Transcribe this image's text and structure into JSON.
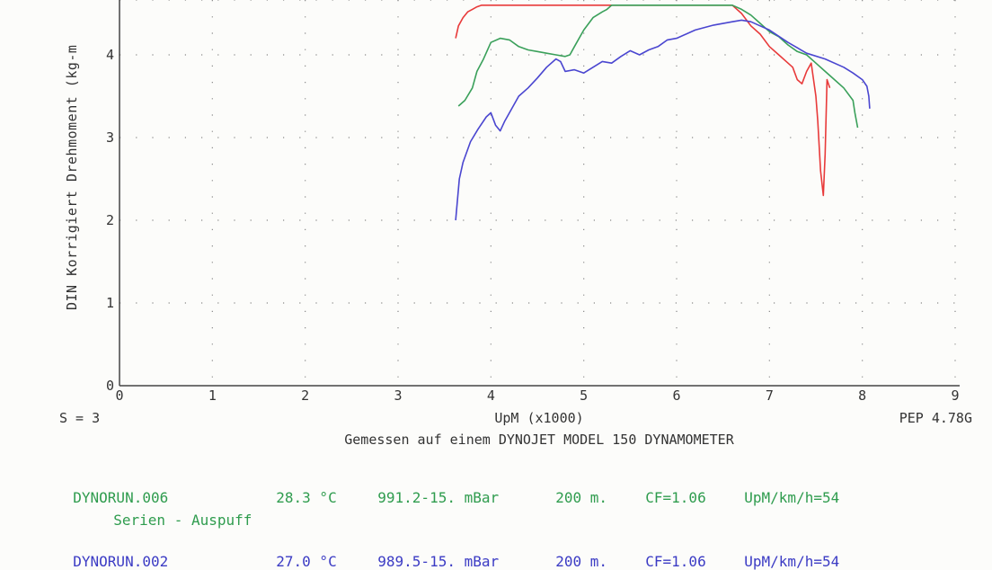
{
  "chart_data": {
    "type": "line",
    "ylabel": "DIN Korrigiert Drehmoment (kg-m",
    "xlabel": "UpM (x1000)",
    "xlim": [
      0,
      9
    ],
    "ylim": [
      0,
      4.55
    ],
    "x_ticks": [
      "0",
      "1",
      "2",
      "3",
      "4",
      "5",
      "6",
      "7",
      "8",
      "9"
    ],
    "y_ticks": [
      "0",
      "1",
      "2",
      "3",
      "4"
    ],
    "grid": true,
    "footer_left": "S = 3",
    "footer_right": "PEP 4.78G",
    "footer_center": "Gemessen auf einem DYNOJET MODEL 150 DYNAMOMETER",
    "series": [
      {
        "color": "#e83a3a",
        "x": [
          3.62,
          3.65,
          3.7,
          3.75,
          3.8,
          3.85,
          3.9,
          6.6,
          6.7,
          6.8,
          6.9,
          7.0,
          7.1,
          7.2,
          7.25,
          7.3,
          7.35,
          7.4,
          7.45,
          7.5,
          7.52,
          7.55,
          7.58,
          7.6,
          7.62,
          7.65
        ],
        "y": [
          4.2,
          4.35,
          4.45,
          4.52,
          4.55,
          4.58,
          4.6,
          4.6,
          4.5,
          4.35,
          4.25,
          4.1,
          4.0,
          3.9,
          3.85,
          3.7,
          3.65,
          3.8,
          3.9,
          3.5,
          3.2,
          2.6,
          2.3,
          2.8,
          3.7,
          3.6
        ]
      },
      {
        "color": "#3aa05a",
        "x": [
          3.65,
          3.72,
          3.8,
          3.85,
          3.92,
          4.0,
          4.1,
          4.2,
          4.3,
          4.4,
          4.5,
          4.6,
          4.7,
          4.8,
          4.85,
          4.9,
          5.0,
          5.1,
          5.2,
          5.25,
          5.3,
          6.6,
          6.7,
          6.8,
          6.9,
          7.0,
          7.1,
          7.2,
          7.3,
          7.4,
          7.5,
          7.6,
          7.7,
          7.8,
          7.9,
          7.92,
          7.95
        ],
        "y": [
          3.38,
          3.45,
          3.6,
          3.8,
          3.95,
          4.15,
          4.2,
          4.18,
          4.1,
          4.06,
          4.04,
          4.02,
          4.0,
          3.98,
          4.0,
          4.1,
          4.3,
          4.45,
          4.52,
          4.55,
          4.6,
          4.6,
          4.55,
          4.48,
          4.38,
          4.28,
          4.22,
          4.12,
          4.04,
          4.0,
          3.9,
          3.8,
          3.7,
          3.6,
          3.45,
          3.3,
          3.12
        ]
      },
      {
        "color": "#4a46d0",
        "x": [
          3.62,
          3.66,
          3.7,
          3.78,
          3.86,
          3.95,
          4.0,
          4.05,
          4.1,
          4.15,
          4.2,
          4.3,
          4.4,
          4.5,
          4.6,
          4.7,
          4.75,
          4.8,
          4.9,
          5.0,
          5.1,
          5.2,
          5.3,
          5.4,
          5.5,
          5.6,
          5.7,
          5.8,
          5.9,
          6.0,
          6.2,
          6.4,
          6.6,
          6.7,
          6.8,
          6.9,
          7.0,
          7.2,
          7.4,
          7.6,
          7.8,
          7.9,
          8.0,
          8.05,
          8.07,
          8.08
        ],
        "y": [
          2.0,
          2.5,
          2.7,
          2.95,
          3.1,
          3.25,
          3.3,
          3.15,
          3.08,
          3.2,
          3.3,
          3.5,
          3.6,
          3.72,
          3.85,
          3.95,
          3.92,
          3.8,
          3.82,
          3.78,
          3.85,
          3.92,
          3.9,
          3.98,
          4.05,
          4.0,
          4.06,
          4.1,
          4.18,
          4.2,
          4.3,
          4.36,
          4.4,
          4.42,
          4.4,
          4.35,
          4.3,
          4.15,
          4.02,
          3.95,
          3.85,
          3.78,
          3.7,
          3.62,
          3.5,
          3.35
        ]
      }
    ]
  },
  "runs": [
    {
      "file": "DYNORUN.006",
      "temp": "28.3 °C",
      "pressure": "991.2-15. mBar",
      "altitude": "200 m.",
      "cf": "CF=1.06",
      "ratio": "UpM/km/h=54",
      "description": "Serien - Auspuff",
      "color": "#2f9c4e"
    },
    {
      "file": "DYNORUN.002",
      "temp": "27.0 °C",
      "pressure": "989.5-15. mBar",
      "altitude": "200 m.",
      "cf": "CF=1.06",
      "ratio": "UpM/km/h=54",
      "color": "#3b3bc4"
    }
  ]
}
